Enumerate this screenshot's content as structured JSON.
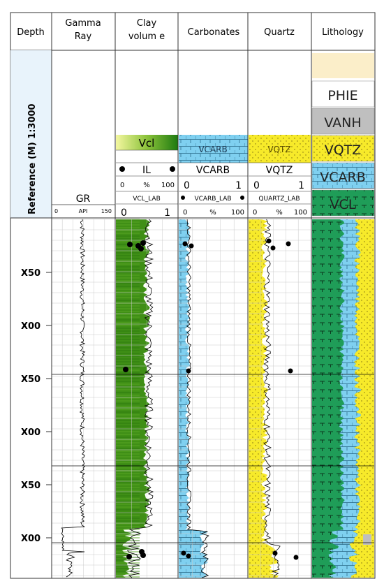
{
  "headers": {
    "depth": "Depth",
    "gamma_ray": [
      "Gamma",
      "Ray"
    ],
    "clay_volume": [
      "Clay",
      "volum e"
    ],
    "carbonates": "Carbonates",
    "quartz": "Quartz",
    "lithology": "Lithology"
  },
  "reference_label": "Reference (M) 1:3000",
  "gamma_ray": {
    "curve": "GR",
    "unit": "API",
    "min": "0",
    "max": "150"
  },
  "clay": {
    "fill_label": "Vcl",
    "marker_label": "IL",
    "scale": {
      "min": "0",
      "unit": "%",
      "max": "100"
    },
    "lab_label": "VCL_LAB",
    "curve_scale": {
      "min": "0",
      "max": "1"
    }
  },
  "carbonates": {
    "fill_label": "VCARB",
    "curve_label": "VCARB",
    "curve_scale": {
      "min": "0",
      "max": "1"
    },
    "lab_label": "VCARB_LAB",
    "lab_scale": {
      "min": "0",
      "unit": "%",
      "max": "100"
    }
  },
  "quartz": {
    "fill_label": "VQTZ",
    "curve_label": "VQTZ",
    "curve_scale": {
      "min": "0",
      "max": "1"
    },
    "lab_label": "QUARTZ_LAB",
    "lab_scale": {
      "min": "0",
      "unit": "%",
      "max": "100"
    }
  },
  "lithology_legend": [
    {
      "label": "PHIE",
      "color": "#ffffff"
    },
    {
      "label": "VANH",
      "color": "#bfbfbf"
    },
    {
      "label": "VQTZ",
      "color": "#fff34f"
    },
    {
      "label": "VCARB",
      "color": "#6cc8ea"
    },
    {
      "label": "VCL",
      "color": "#1f9d58"
    }
  ],
  "depth_labels": [
    "X50",
    "X00",
    "X50",
    "X00",
    "X50",
    "X00"
  ],
  "colors": {
    "clay_green": "#3f8f16",
    "carb_blue": "#7fd0f0",
    "quartz_yellow": "#f7ea2a",
    "lith_green": "#1f9d58",
    "ref_panel": "#e8f3fb",
    "legend_top": "#fbeec9"
  }
}
